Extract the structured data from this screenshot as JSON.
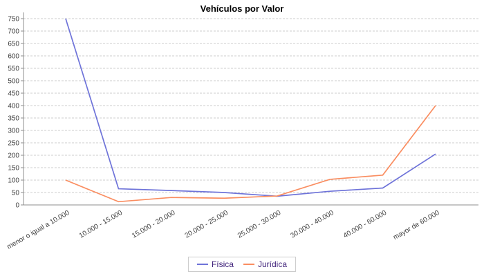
{
  "title": "Vehículos por Valor",
  "colors": {
    "background": "#ffffff",
    "title_text": "#000000",
    "axis_line": "#8c8c8c",
    "grid_line": "#cccccc",
    "tick_label": "#3c3c3c",
    "legend_text": "#3c1e78",
    "legend_border": "#cccccc"
  },
  "chart_data": {
    "type": "line",
    "title": "Vehículos por Valor",
    "categories": [
      "menor o igual a 10.000",
      "10.000 - 15.000",
      "15.000 - 20.000",
      "20.000 - 25.000",
      "25.000 - 30.000",
      "30.000 - 40.000",
      "40.000 - 60.000",
      "mayor de 60.000"
    ],
    "series": [
      {
        "name": "Física",
        "color": "#6e73d9",
        "values": [
          750,
          65,
          58,
          50,
          35,
          55,
          68,
          205
        ]
      },
      {
        "name": "Jurídica",
        "color": "#fa8d60",
        "values": [
          100,
          13,
          30,
          27,
          36,
          103,
          120,
          400
        ]
      }
    ],
    "xlabel": "",
    "ylabel": "",
    "ylim": [
      0,
      750
    ],
    "ytick_step": 50,
    "grid": "horizontal-dashed",
    "legend_position": "bottom-center",
    "category_label_rotation_deg": -30
  }
}
